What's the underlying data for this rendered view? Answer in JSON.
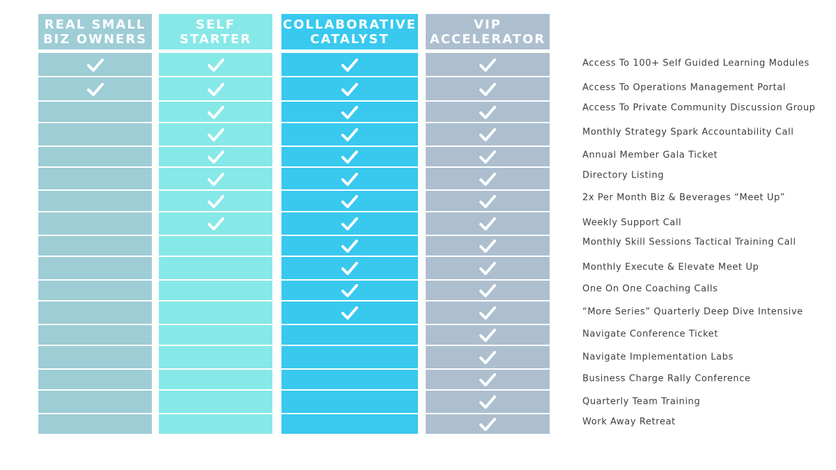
{
  "colors": {
    "real_small_biz": "#9ecdd6",
    "self_starter": "#87e8e8",
    "collaborative": "#39c9ef",
    "vip": "#adbfcf",
    "check": "#ffffff",
    "feature_text": "#3d3d3d"
  },
  "plans": [
    {
      "name": "REAL SMALL\nBIZ OWNERS",
      "color_key": "real_small_biz",
      "checks": [
        true,
        true,
        false,
        false,
        false,
        false,
        false,
        false,
        false,
        false,
        false,
        false,
        false,
        false,
        false,
        false,
        false
      ]
    },
    {
      "name": "SELF STARTER",
      "color_key": "self_starter",
      "checks": [
        true,
        true,
        true,
        true,
        true,
        true,
        true,
        true,
        false,
        false,
        false,
        false,
        false,
        false,
        false,
        false,
        false
      ]
    },
    {
      "name": "COLLABORATIVE\nCATALYST",
      "color_key": "collaborative",
      "checks": [
        true,
        true,
        true,
        true,
        true,
        true,
        true,
        true,
        true,
        true,
        true,
        true,
        false,
        false,
        false,
        false,
        false
      ]
    },
    {
      "name": "VIP\nACCELERATOR",
      "color_key": "vip",
      "checks": [
        true,
        true,
        true,
        true,
        true,
        true,
        true,
        true,
        true,
        true,
        true,
        true,
        true,
        true,
        true,
        true,
        true
      ]
    }
  ],
  "features": [
    "Access To 100+ Self Guided Learning Modules",
    "Access To Operations Management Portal",
    "Access To Private Community Discussion Group",
    "Monthly Strategy Spark Accountability Call",
    "Annual Member Gala Ticket",
    "Directory Listing",
    "2x Per Month Biz & Beverages “Meet Up”",
    "Weekly Support Call",
    "Monthly Skill Sessions Tactical Training Call",
    "Monthly Execute & Elevate Meet Up",
    "One On One Coaching Calls",
    "“More Series” Quarterly Deep Dive Intensive",
    "Navigate Conference Ticket",
    "Navigate Implementation Labs",
    "Business Charge Rally Conference",
    "Quarterly Team Training",
    "Work Away Retreat"
  ]
}
